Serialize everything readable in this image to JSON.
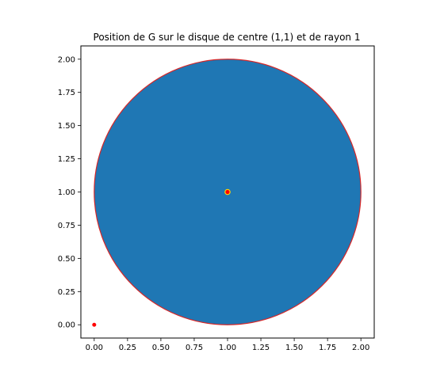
{
  "chart_data": {
    "type": "scatter",
    "title": "Position de G sur le disque de centre (1,1) et de rayon 1",
    "xlabel": "",
    "ylabel": "",
    "xlim": [
      -0.1,
      2.1
    ],
    "ylim": [
      -0.1,
      2.1
    ],
    "grid": false,
    "legend": "none",
    "xticks": [
      "0.00",
      "0.25",
      "0.50",
      "0.75",
      "1.00",
      "1.25",
      "1.50",
      "1.75",
      "2.00"
    ],
    "yticks": [
      "0.00",
      "0.25",
      "0.50",
      "0.75",
      "1.00",
      "1.25",
      "1.50",
      "1.75",
      "2.00"
    ],
    "disk": {
      "center": [
        1,
        1
      ],
      "radius": 1,
      "fill_color": "#1f77b4",
      "edge_color": "#d62728"
    },
    "points": [
      {
        "x": 0,
        "y": 0,
        "color": "#ff0000"
      },
      {
        "x": 1,
        "y": 1,
        "color": "#ff0000",
        "edge_color": "#ffd700"
      }
    ]
  }
}
